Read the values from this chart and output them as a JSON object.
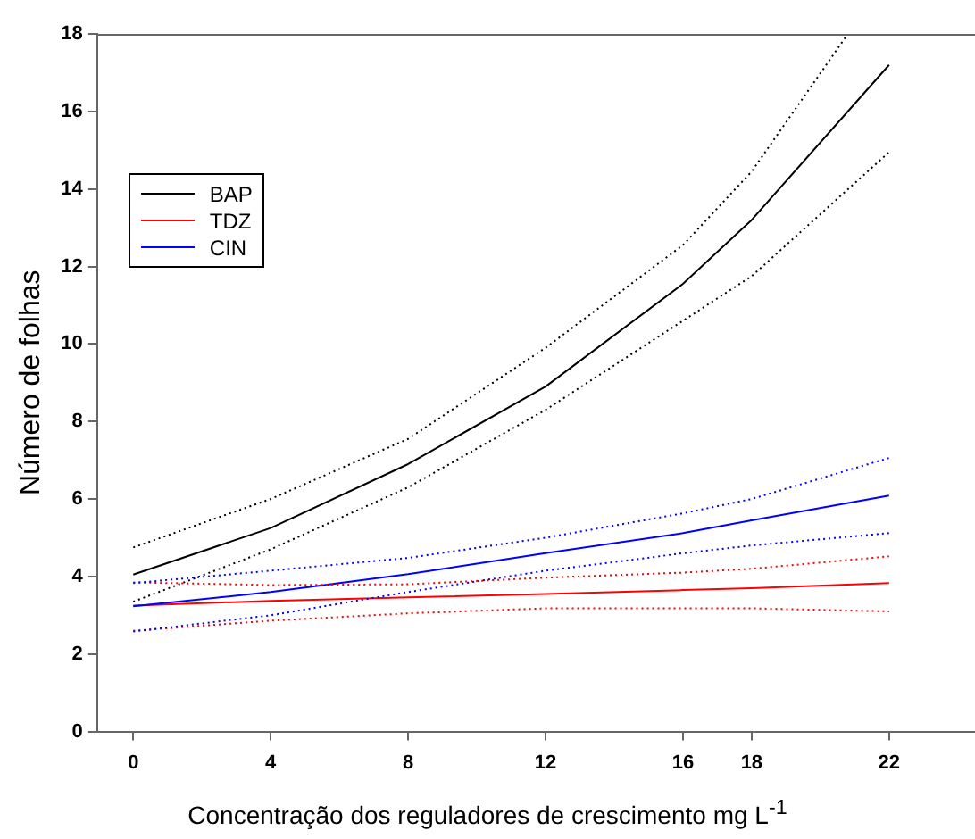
{
  "chart_data": {
    "type": "line",
    "xlabel": "Concentração dos reguladores de crescimento mg L$^{-1}$",
    "ylabel": "Número de folhas",
    "x": [
      0,
      4,
      8,
      12,
      16,
      18,
      22
    ],
    "xlim": [
      -1.05,
      24.5
    ],
    "xticks": [
      0,
      4,
      8,
      12,
      16,
      18,
      22
    ],
    "ylim": [
      0,
      18
    ],
    "yticks": [
      0,
      2,
      4,
      6,
      8,
      10,
      12,
      14,
      16,
      18
    ],
    "grid": false,
    "legend": "top left",
    "marker": "none",
    "series": [
      {
        "name": "BAP",
        "color": "#000000",
        "line_style": "solid",
        "values": [
          4.05,
          5.25,
          6.9,
          8.9,
          11.55,
          13.2,
          17.2
        ]
      },
      {
        "name": "TDZ",
        "color": "#ff0000",
        "line_style": "solid",
        "values": [
          3.25,
          3.37,
          3.46,
          3.55,
          3.65,
          3.7,
          3.83
        ]
      },
      {
        "name": "CIN",
        "color": "#0000ff",
        "line_style": "solid",
        "values": [
          3.23,
          3.6,
          4.06,
          4.6,
          5.12,
          5.45,
          6.09
        ]
      },
      {
        "color": "#000000",
        "line_style": "dotted",
        "x": [
          0,
          4,
          8,
          12,
          16,
          18,
          20.8
        ],
        "values": [
          4.75,
          6.0,
          7.55,
          9.9,
          12.55,
          14.45,
          18
        ]
      },
      {
        "color": "#000000",
        "line_style": "dotted",
        "values": [
          3.35,
          4.7,
          6.3,
          8.3,
          10.6,
          11.75,
          14.95
        ]
      },
      {
        "color": "#ff0000",
        "line_style": "dotted",
        "values": [
          3.85,
          3.78,
          3.8,
          3.97,
          4.1,
          4.2,
          4.52
        ]
      },
      {
        "color": "#ff0000",
        "line_style": "dotted",
        "values": [
          2.6,
          2.86,
          3.05,
          3.18,
          3.18,
          3.18,
          3.1
        ]
      },
      {
        "color": "#0000ff",
        "line_style": "dotted",
        "values": [
          3.83,
          4.15,
          4.48,
          5.0,
          5.63,
          6.0,
          7.06
        ]
      },
      {
        "color": "#0000ff",
        "line_style": "dotted",
        "values": [
          2.58,
          3.0,
          3.6,
          4.15,
          4.6,
          4.8,
          5.12
        ]
      }
    ]
  }
}
